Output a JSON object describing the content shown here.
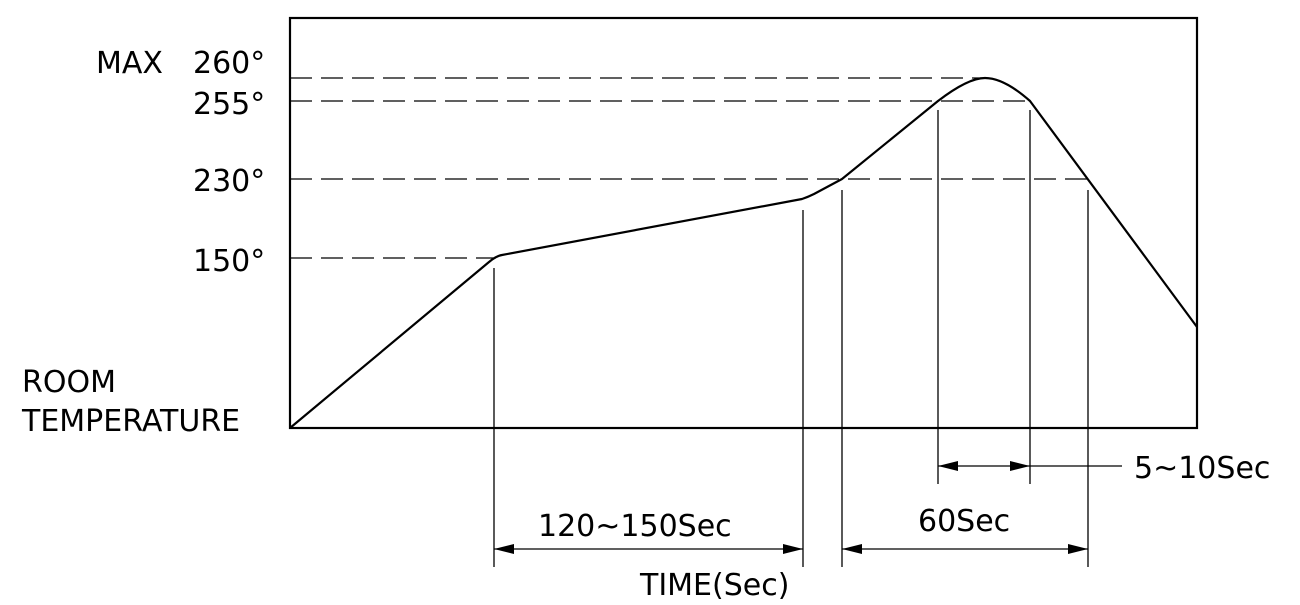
{
  "labels": {
    "max_prefix": "MAX",
    "t260": "260°",
    "t255": "255°",
    "t230": "230°",
    "t150": "150°",
    "room_line1": "ROOM",
    "room_line2": "TEMPERATURE",
    "dim_preheat": "120~150Sec",
    "dim_reflow": "60Sec",
    "dim_peak": "5~10Sec",
    "time_axis": "TIME(Sec)"
  },
  "colors": {
    "ink": "#000000",
    "background": "#ffffff"
  }
}
